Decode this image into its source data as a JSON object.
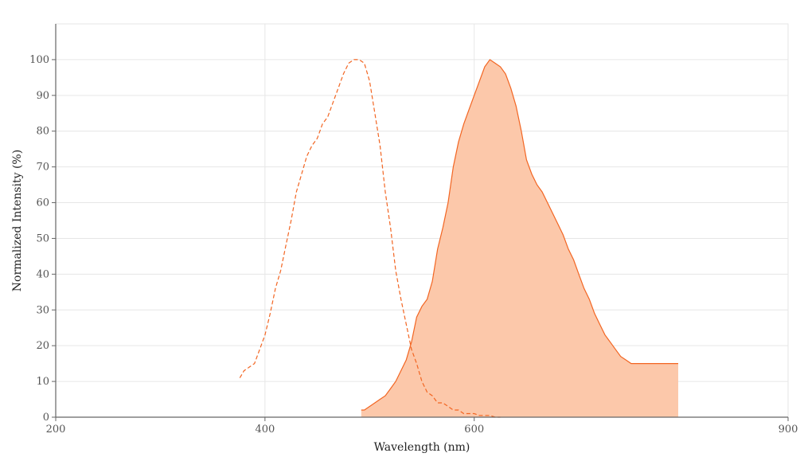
{
  "chart_data": {
    "type": "area",
    "xlabel": "Wavelength (nm)",
    "ylabel": "Normalized Intensity (%)",
    "xlim": [
      200,
      900
    ],
    "ylim": [
      0,
      110
    ],
    "xticks": [
      200,
      400,
      600,
      900
    ],
    "yticks": [
      0,
      10,
      20,
      30,
      40,
      50,
      60,
      70,
      80,
      90,
      100
    ],
    "grid": true,
    "legend": "none",
    "colors": {
      "line": "#f26522",
      "fill": "#fcc8aa",
      "grid": "#e6e6e6",
      "axis": "#666666"
    },
    "series": [
      {
        "style": "dashed-line",
        "x": [
          376,
          380,
          385,
          390,
          395,
          400,
          405,
          410,
          415,
          420,
          425,
          430,
          435,
          440,
          445,
          450,
          455,
          460,
          465,
          470,
          475,
          480,
          485,
          490,
          495,
          500,
          505,
          510,
          515,
          520,
          525,
          530,
          535,
          540,
          545,
          550,
          555,
          560,
          565,
          570,
          575,
          580,
          585,
          590,
          595,
          600,
          605,
          610,
          615,
          620,
          625
        ],
        "y": [
          11,
          13,
          14,
          15,
          19,
          23,
          29,
          36,
          41,
          48,
          55,
          63,
          68,
          73,
          76,
          78,
          82,
          84,
          88,
          92,
          96,
          99,
          100,
          100,
          99,
          94,
          85,
          76,
          63,
          53,
          41,
          33,
          26,
          19,
          15,
          10,
          7,
          6,
          4,
          4,
          3,
          2,
          2,
          1,
          1,
          1,
          0.5,
          0.5,
          0.5,
          0,
          0
        ]
      },
      {
        "style": "filled-area",
        "x": [
          492,
          495,
          500,
          505,
          510,
          515,
          520,
          525,
          530,
          535,
          540,
          545,
          550,
          555,
          560,
          565,
          570,
          575,
          580,
          585,
          590,
          595,
          600,
          605,
          610,
          615,
          620,
          625,
          630,
          635,
          640,
          645,
          650,
          655,
          660,
          665,
          670,
          675,
          680,
          685,
          690,
          695,
          700,
          705,
          710,
          715,
          720,
          725,
          730,
          735,
          740,
          745,
          750,
          755,
          760,
          765,
          770,
          775,
          780,
          785,
          790,
          795
        ],
        "y": [
          2,
          2,
          3,
          4,
          5,
          6,
          8,
          10,
          13,
          16,
          21,
          28,
          31,
          33,
          38,
          47,
          53,
          60,
          70,
          77,
          82,
          86,
          90,
          94,
          98,
          100,
          99,
          98,
          96,
          92,
          87,
          80,
          72,
          68,
          65,
          63,
          60,
          57,
          54,
          51,
          47,
          44,
          40,
          36,
          33,
          29,
          26,
          23,
          21,
          19,
          17,
          16,
          15,
          15,
          15,
          15,
          15,
          15,
          15,
          15,
          15,
          15
        ]
      }
    ]
  }
}
